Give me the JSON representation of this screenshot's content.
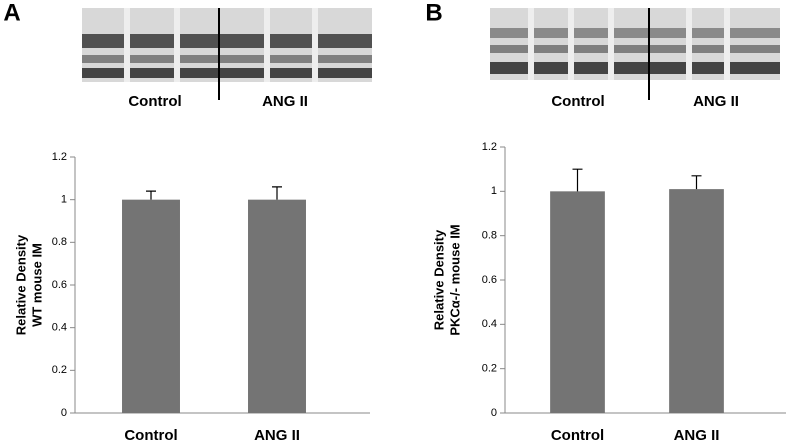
{
  "chart_data": [
    {
      "type": "bar",
      "panel": "A",
      "blot_labels": [
        "Control",
        "ANG II"
      ],
      "ylabel": [
        "Relative Density",
        "WT mouse IM"
      ],
      "categories": [
        "Control",
        "ANG II"
      ],
      "values": [
        1.0,
        1.0
      ],
      "errors": [
        0.04,
        0.06
      ],
      "color": "#747474",
      "ylim": [
        0,
        1.2
      ],
      "yticks": [
        0,
        0.2,
        0.4,
        0.6,
        0.8,
        1,
        1.2
      ]
    },
    {
      "type": "bar",
      "panel": "B",
      "blot_labels": [
        "Control",
        "ANG II"
      ],
      "ylabel": [
        "Relative Density",
        "PKCα-/- mouse IM"
      ],
      "categories": [
        "Control",
        "ANG II"
      ],
      "values": [
        1.0,
        1.01
      ],
      "errors": [
        0.1,
        0.06
      ],
      "color": "#747474",
      "ylim": [
        0,
        1.2
      ],
      "yticks": [
        0,
        0.2,
        0.4,
        0.6,
        0.8,
        1,
        1.2
      ]
    }
  ]
}
